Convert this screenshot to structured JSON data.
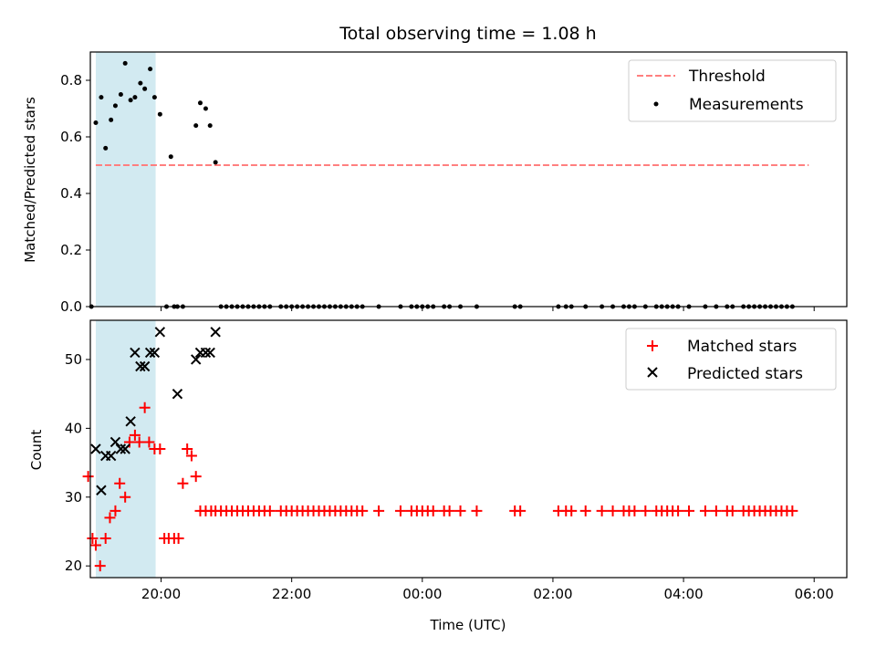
{
  "chart_data": [
    {
      "type": "scatter",
      "title": "Total observing time = 1.08 h",
      "xlabel": "",
      "ylabel": "Matched/Predicted stars",
      "xlim": [
        "18:55",
        "06:30"
      ],
      "ylim": [
        0,
        0.9
      ],
      "yticks": [
        "0.0",
        "0.2",
        "0.4",
        "0.6",
        "0.8"
      ],
      "grid": false,
      "legend": "top-right",
      "highlight_span": {
        "x0": "19:00",
        "x1": "19:55"
      },
      "threshold": {
        "name": "Threshold",
        "y": 0.5,
        "x0": "19:00",
        "x1": "05:55",
        "color": "#ff7f7f"
      },
      "series": [
        {
          "name": "Measurements",
          "marker": "dot",
          "color": "#000000",
          "x": [
            "18:56",
            "19:00",
            "19:05",
            "19:09",
            "19:14",
            "19:18",
            "19:23",
            "19:27",
            "19:32",
            "19:36",
            "19:41",
            "19:45",
            "19:50",
            "19:54",
            "19:59",
            "20:05",
            "20:09",
            "20:12",
            "20:15",
            "20:20",
            "20:32",
            "20:36",
            "20:41",
            "20:45",
            "20:50",
            "20:55",
            "21:00",
            "21:05",
            "21:10",
            "21:15",
            "21:20",
            "21:25",
            "21:30",
            "21:35",
            "21:40",
            "21:50",
            "21:55",
            "22:00",
            "22:05",
            "22:10",
            "22:15",
            "22:20",
            "22:25",
            "22:30",
            "22:35",
            "22:40",
            "22:45",
            "22:50",
            "22:55",
            "23:00",
            "23:05",
            "23:20",
            "23:40",
            "23:50",
            "23:55",
            "00:00",
            "00:05",
            "00:10",
            "00:20",
            "00:25",
            "00:35",
            "00:50",
            "01:25",
            "01:30",
            "02:05",
            "02:12",
            "02:17",
            "02:30",
            "02:45",
            "02:55",
            "03:05",
            "03:10",
            "03:15",
            "03:25",
            "03:35",
            "03:40",
            "03:45",
            "03:50",
            "03:55",
            "04:05",
            "04:20",
            "04:30",
            "04:40",
            "04:45",
            "04:55",
            "05:00",
            "05:05",
            "05:10",
            "05:15",
            "05:20",
            "05:25",
            "05:30",
            "05:35",
            "05:40"
          ],
          "y": [
            0,
            0.65,
            0.74,
            0.56,
            0.66,
            0.71,
            0.75,
            0.86,
            0.73,
            0.74,
            0.79,
            0.77,
            0.84,
            0.74,
            0.68,
            0,
            0.53,
            0,
            0,
            0,
            0.64,
            0.72,
            0.7,
            0.64,
            0.51,
            0,
            0,
            0,
            0,
            0,
            0,
            0,
            0,
            0,
            0,
            0,
            0,
            0,
            0,
            0,
            0,
            0,
            0,
            0,
            0,
            0,
            0,
            0,
            0,
            0,
            0,
            0,
            0,
            0,
            0,
            0,
            0,
            0,
            0,
            0,
            0,
            0,
            0,
            0,
            0,
            0,
            0,
            0,
            0,
            0,
            0,
            0,
            0,
            0,
            0,
            0,
            0,
            0,
            0,
            0,
            0,
            0,
            0,
            0,
            0,
            0,
            0,
            0,
            0,
            0,
            0,
            0,
            0,
            0
          ]
        }
      ]
    },
    {
      "type": "scatter",
      "title": "",
      "xlabel": "Time (UTC)",
      "ylabel": "Count",
      "xlim": [
        "18:55",
        "06:30"
      ],
      "ylim": [
        18.3,
        55.7
      ],
      "yticks": [
        "20",
        "30",
        "40",
        "50"
      ],
      "xticks": [
        "20:00",
        "22:00",
        "00:00",
        "02:00",
        "04:00",
        "06:00"
      ],
      "grid": false,
      "legend": "top-right",
      "highlight_span": {
        "x0": "19:00",
        "x1": "19:55"
      },
      "series": [
        {
          "name": "Matched stars",
          "marker": "plus",
          "color": "#ff0000",
          "x": [
            "18:53",
            "18:57",
            "19:00",
            "19:04",
            "19:09",
            "19:13",
            "19:18",
            "19:22",
            "19:27",
            "19:31",
            "19:36",
            "19:40",
            "19:45",
            "19:49",
            "19:54",
            "19:59",
            "20:03",
            "20:07",
            "20:12",
            "20:16",
            "20:20",
            "20:24",
            "20:28",
            "20:32",
            "20:36",
            "20:41",
            "20:46",
            "20:50",
            "20:55",
            "21:00",
            "21:05",
            "21:10",
            "21:15",
            "21:20",
            "21:25",
            "21:30",
            "21:35",
            "21:40",
            "21:50",
            "21:55",
            "22:00",
            "22:05",
            "22:10",
            "22:15",
            "22:20",
            "22:25",
            "22:30",
            "22:35",
            "22:40",
            "22:45",
            "22:50",
            "22:55",
            "23:00",
            "23:05",
            "23:20",
            "23:40",
            "23:50",
            "23:55",
            "00:00",
            "00:05",
            "00:10",
            "00:20",
            "00:25",
            "00:35",
            "00:50",
            "01:25",
            "01:30",
            "02:05",
            "02:12",
            "02:17",
            "02:30",
            "02:45",
            "02:55",
            "03:05",
            "03:10",
            "03:15",
            "03:25",
            "03:35",
            "03:40",
            "03:45",
            "03:50",
            "03:55",
            "04:05",
            "04:20",
            "04:30",
            "04:40",
            "04:45",
            "04:55",
            "05:00",
            "05:05",
            "05:10",
            "05:15",
            "05:20",
            "05:25",
            "05:30",
            "05:35",
            "05:40"
          ],
          "y": [
            33,
            24,
            23,
            20,
            24,
            27,
            28,
            32,
            30,
            38,
            39,
            38,
            43,
            38,
            37,
            37,
            24,
            24,
            24,
            24,
            32,
            37,
            36,
            33,
            28,
            28,
            28,
            28,
            28,
            28,
            28,
            28,
            28,
            28,
            28,
            28,
            28,
            28,
            28,
            28,
            28,
            28,
            28,
            28,
            28,
            28,
            28,
            28,
            28,
            28,
            28,
            28,
            28,
            28,
            28,
            28,
            28,
            28,
            28,
            28,
            28,
            28,
            28,
            28,
            28,
            28,
            28,
            28,
            28,
            28,
            28,
            28,
            28,
            28,
            28,
            28,
            28,
            28,
            28,
            28,
            28,
            28,
            28,
            28,
            28,
            28,
            28,
            28,
            28,
            28,
            28,
            28,
            28,
            28,
            28,
            28,
            28
          ]
        },
        {
          "name": "Predicted stars",
          "marker": "x",
          "color": "#000000",
          "x": [
            "19:00",
            "19:05",
            "19:09",
            "19:14",
            "19:18",
            "19:23",
            "19:27",
            "19:32",
            "19:36",
            "19:41",
            "19:45",
            "19:50",
            "19:54",
            "19:59",
            "20:15",
            "20:32",
            "20:36",
            "20:41",
            "20:45",
            "20:50"
          ],
          "y": [
            37,
            31,
            36,
            36,
            38,
            37,
            37,
            41,
            51,
            49,
            49,
            51,
            51,
            54,
            45,
            50,
            51,
            51,
            51,
            54
          ]
        }
      ]
    }
  ]
}
